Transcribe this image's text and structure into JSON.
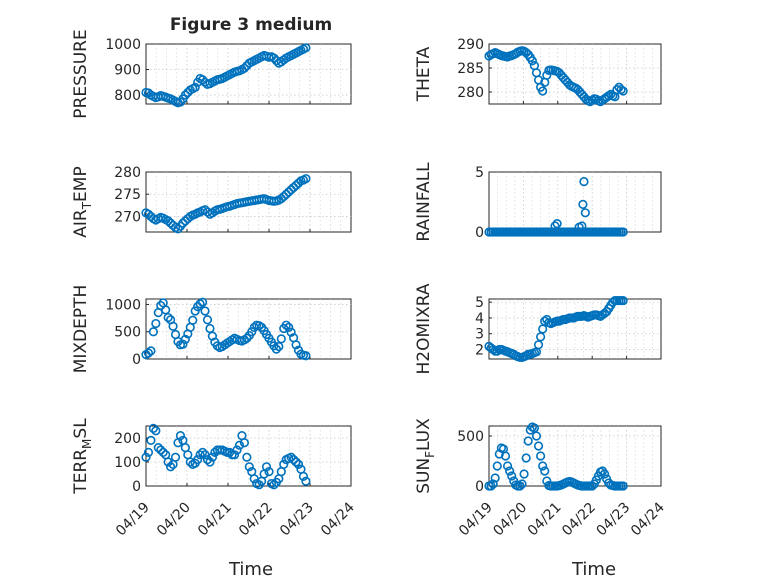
{
  "chart_data": {
    "type": "scatter",
    "title": "Figure 3 medium",
    "marker_color": "#0072BD",
    "grid": true,
    "x_ticks": [
      "04/19",
      "04/20",
      "04/21",
      "04/22",
      "04/23",
      "04/24"
    ],
    "x_range_days": [
      19,
      24
    ],
    "x_label": "Time",
    "subplots": [
      {
        "ylabel": "PRESSURE",
        "ylim": [
          765,
          1000
        ],
        "yticks": [
          800,
          900,
          1000
        ],
        "x": [
          19.0,
          19.06,
          19.12,
          19.18,
          19.24,
          19.3,
          19.36,
          19.42,
          19.48,
          19.54,
          19.6,
          19.66,
          19.72,
          19.78,
          19.84,
          19.9,
          19.96,
          20.02,
          20.08,
          20.14,
          20.2,
          20.26,
          20.32,
          20.38,
          20.44,
          20.5,
          20.56,
          20.62,
          20.68,
          20.74,
          20.8,
          20.86,
          20.92,
          20.98,
          21.04,
          21.1,
          21.16,
          21.22,
          21.28,
          21.34,
          21.4,
          21.46,
          21.52,
          21.58,
          21.64,
          21.7,
          21.76,
          21.82,
          21.88,
          21.94,
          22.0,
          22.06,
          22.12,
          22.18,
          22.24,
          22.3,
          22.36,
          22.42,
          22.48,
          22.54,
          22.6,
          22.66,
          22.72,
          22.78,
          22.84,
          22.9
        ],
        "y": [
          810,
          808,
          800,
          795,
          790,
          793,
          798,
          795,
          792,
          788,
          785,
          780,
          775,
          770,
          773,
          785,
          800,
          810,
          820,
          825,
          830,
          850,
          865,
          860,
          850,
          842,
          845,
          850,
          855,
          860,
          862,
          865,
          870,
          875,
          880,
          885,
          890,
          893,
          895,
          900,
          905,
          915,
          925,
          930,
          935,
          940,
          945,
          950,
          955,
          952,
          948,
          950,
          945,
          935,
          925,
          930,
          938,
          945,
          950,
          955,
          960,
          965,
          970,
          975,
          980,
          985
        ]
      },
      {
        "ylabel": "THETA",
        "ylim": [
          277.5,
          290
        ],
        "yticks": [
          280,
          285,
          290
        ],
        "x": [
          19.0,
          19.06,
          19.12,
          19.18,
          19.24,
          19.3,
          19.36,
          19.42,
          19.48,
          19.54,
          19.6,
          19.66,
          19.72,
          19.78,
          19.84,
          19.9,
          19.96,
          20.02,
          20.08,
          20.14,
          20.2,
          20.26,
          20.32,
          20.38,
          20.44,
          20.5,
          20.56,
          20.62,
          20.68,
          20.74,
          20.8,
          20.86,
          20.92,
          20.98,
          21.04,
          21.1,
          21.16,
          21.22,
          21.28,
          21.34,
          21.4,
          21.46,
          21.52,
          21.58,
          21.64,
          21.7,
          21.76,
          21.82,
          21.88,
          21.94,
          22.0,
          22.06,
          22.12,
          22.18,
          22.24,
          22.3,
          22.36,
          22.42,
          22.48,
          22.54,
          22.6,
          22.66,
          22.72,
          22.78,
          22.84,
          22.9
        ],
        "y": [
          287.5,
          287.8,
          288.0,
          288.2,
          288.0,
          287.8,
          287.6,
          287.5,
          287.4,
          287.3,
          287.5,
          287.6,
          287.8,
          288.0,
          288.3,
          288.5,
          288.6,
          288.5,
          288.2,
          287.8,
          287.2,
          286.5,
          285.5,
          284.0,
          282.5,
          281.0,
          280.2,
          282.0,
          283.5,
          284.5,
          284.6,
          284.5,
          284.4,
          284.3,
          284.0,
          283.5,
          283.0,
          282.5,
          282.0,
          281.5,
          281.2,
          281.0,
          280.8,
          280.5,
          280.0,
          279.5,
          279.0,
          278.5,
          278.2,
          278.0,
          278.3,
          278.6,
          278.5,
          278.2,
          278.0,
          278.3,
          278.6,
          278.9,
          279.2,
          279.5,
          279.2,
          279.0,
          280.5,
          281.0,
          280.5,
          280.2
        ]
      },
      {
        "ylabel": "AIR",
        "ylabel_sub": "T",
        "ylabel_tail": "EMP",
        "ylim": [
          266.5,
          280
        ],
        "yticks": [
          270,
          275,
          280
        ],
        "x": [
          19.0,
          19.06,
          19.12,
          19.18,
          19.24,
          19.3,
          19.36,
          19.42,
          19.48,
          19.54,
          19.6,
          19.66,
          19.72,
          19.78,
          19.84,
          19.9,
          19.96,
          20.02,
          20.08,
          20.14,
          20.2,
          20.26,
          20.32,
          20.38,
          20.44,
          20.5,
          20.56,
          20.62,
          20.68,
          20.74,
          20.8,
          20.86,
          20.92,
          20.98,
          21.04,
          21.1,
          21.16,
          21.22,
          21.28,
          21.34,
          21.4,
          21.46,
          21.52,
          21.58,
          21.64,
          21.7,
          21.76,
          21.82,
          21.88,
          21.94,
          22.0,
          22.06,
          22.12,
          22.18,
          22.24,
          22.3,
          22.36,
          22.42,
          22.48,
          22.54,
          22.6,
          22.66,
          22.72,
          22.78,
          22.84,
          22.9
        ],
        "y": [
          270.8,
          270.5,
          270.0,
          269.5,
          269.2,
          269.5,
          269.8,
          269.6,
          269.3,
          269.0,
          268.5,
          268.0,
          267.5,
          267.2,
          267.8,
          268.5,
          269.0,
          269.5,
          270.0,
          270.3,
          270.5,
          270.8,
          271.0,
          271.3,
          271.5,
          271.0,
          270.5,
          270.8,
          271.2,
          271.5,
          271.6,
          271.8,
          272.0,
          272.2,
          272.3,
          272.5,
          272.7,
          272.9,
          273.0,
          273.1,
          273.2,
          273.3,
          273.4,
          273.5,
          273.6,
          273.7,
          273.8,
          273.9,
          274.0,
          273.8,
          273.6,
          273.5,
          273.4,
          273.5,
          273.7,
          274.0,
          274.5,
          275.0,
          275.5,
          276.0,
          276.5,
          277.0,
          277.5,
          278.0,
          278.2,
          278.5
        ]
      },
      {
        "ylabel": "RAINFALL",
        "ylim": [
          0,
          5
        ],
        "yticks": [
          0,
          5
        ],
        "x": [
          19.0,
          19.06,
          19.12,
          19.18,
          19.24,
          19.3,
          19.36,
          19.42,
          19.48,
          19.54,
          19.6,
          19.66,
          19.72,
          19.78,
          19.84,
          19.9,
          19.96,
          20.02,
          20.08,
          20.14,
          20.2,
          20.26,
          20.32,
          20.38,
          20.44,
          20.5,
          20.56,
          20.62,
          20.68,
          20.74,
          20.8,
          20.86,
          20.92,
          20.98,
          21.04,
          21.1,
          21.16,
          21.22,
          21.28,
          21.34,
          21.4,
          21.46,
          21.52,
          21.58,
          21.64,
          21.7,
          21.76,
          21.82,
          21.88,
          21.94,
          22.0,
          22.06,
          22.12,
          22.18,
          22.24,
          22.3,
          22.36,
          22.42,
          22.48,
          22.54,
          22.6,
          22.66,
          22.72,
          22.78,
          22.84,
          22.9,
          20.92,
          20.98,
          21.62,
          21.7,
          21.73,
          21.76,
          21.8
        ],
        "y": [
          0,
          0,
          0,
          0,
          0,
          0,
          0,
          0,
          0,
          0,
          0,
          0,
          0,
          0,
          0,
          0,
          0,
          0,
          0,
          0,
          0,
          0,
          0,
          0,
          0,
          0,
          0,
          0,
          0,
          0,
          0,
          0,
          0,
          0,
          0,
          0,
          0,
          0,
          0,
          0,
          0,
          0,
          0,
          0,
          0,
          0,
          0,
          0,
          0,
          0,
          0,
          0,
          0,
          0,
          0,
          0,
          0,
          0,
          0,
          0,
          0,
          0,
          0,
          0,
          0,
          0,
          0.5,
          0.7,
          0.4,
          0.5,
          2.3,
          4.2,
          1.6
        ]
      },
      {
        "ylabel": "MIXDEPTH",
        "ylim": [
          0,
          1100
        ],
        "yticks": [
          0,
          500,
          1000
        ],
        "x": [
          19.0,
          19.06,
          19.12,
          19.18,
          19.24,
          19.3,
          19.36,
          19.42,
          19.48,
          19.54,
          19.6,
          19.66,
          19.72,
          19.78,
          19.84,
          19.9,
          19.96,
          20.02,
          20.08,
          20.14,
          20.2,
          20.26,
          20.32,
          20.38,
          20.44,
          20.5,
          20.56,
          20.62,
          20.68,
          20.74,
          20.8,
          20.86,
          20.92,
          20.98,
          21.04,
          21.1,
          21.16,
          21.22,
          21.28,
          21.34,
          21.4,
          21.46,
          21.52,
          21.58,
          21.64,
          21.7,
          21.76,
          21.82,
          21.88,
          21.94,
          22.0,
          22.06,
          22.12,
          22.18,
          22.24,
          22.3,
          22.36,
          22.42,
          22.48,
          22.54,
          22.6,
          22.66,
          22.72,
          22.78,
          22.84,
          22.9
        ],
        "y": [
          80,
          110,
          150,
          500,
          650,
          850,
          980,
          1030,
          900,
          760,
          720,
          600,
          450,
          320,
          260,
          270,
          360,
          460,
          580,
          710,
          880,
          960,
          1010,
          1040,
          880,
          720,
          560,
          420,
          310,
          240,
          210,
          230,
          260,
          290,
          320,
          350,
          380,
          360,
          340,
          330,
          350,
          380,
          430,
          500,
          580,
          620,
          610,
          580,
          520,
          450,
          380,
          310,
          240,
          180,
          230,
          370,
          560,
          620,
          580,
          490,
          390,
          260,
          160,
          90,
          70,
          60
        ]
      },
      {
        "ylabel": "H2OMIXRA",
        "ylim": [
          1.4,
          5.2
        ],
        "yticks": [
          2,
          3,
          4,
          5
        ],
        "x": [
          19.0,
          19.06,
          19.12,
          19.18,
          19.24,
          19.3,
          19.36,
          19.42,
          19.48,
          19.54,
          19.6,
          19.66,
          19.72,
          19.78,
          19.84,
          19.9,
          19.96,
          20.02,
          20.08,
          20.14,
          20.2,
          20.26,
          20.32,
          20.38,
          20.44,
          20.5,
          20.56,
          20.62,
          20.68,
          20.74,
          20.8,
          20.86,
          20.92,
          20.98,
          21.04,
          21.1,
          21.16,
          21.22,
          21.28,
          21.34,
          21.4,
          21.46,
          21.52,
          21.58,
          21.64,
          21.7,
          21.76,
          21.82,
          21.88,
          21.94,
          22.0,
          22.06,
          22.12,
          22.18,
          22.24,
          22.3,
          22.36,
          22.42,
          22.48,
          22.54,
          22.6,
          22.66,
          22.72,
          22.78,
          22.84,
          22.9
        ],
        "y": [
          2.2,
          2.1,
          2.0,
          1.9,
          1.9,
          2.0,
          2.0,
          1.95,
          1.9,
          1.85,
          1.8,
          1.75,
          1.7,
          1.6,
          1.55,
          1.5,
          1.5,
          1.55,
          1.6,
          1.7,
          1.7,
          1.75,
          1.8,
          1.85,
          2.3,
          2.8,
          3.3,
          3.8,
          3.9,
          3.7,
          3.65,
          3.7,
          3.75,
          3.8,
          3.8,
          3.85,
          3.9,
          3.9,
          3.95,
          4.0,
          4.0,
          4.0,
          4.05,
          4.1,
          4.1,
          4.1,
          4.15,
          4.1,
          4.05,
          4.1,
          4.15,
          4.2,
          4.2,
          4.15,
          4.1,
          4.2,
          4.3,
          4.4,
          4.6,
          4.8,
          5.0,
          5.1,
          5.1,
          5.1,
          5.1,
          5.1
        ]
      },
      {
        "ylabel": "TERR",
        "ylabel_sub": "M",
        "ylabel_tail": "SL",
        "ylim": [
          0,
          250
        ],
        "yticks": [
          0,
          100,
          200
        ],
        "x": [
          19.0,
          19.06,
          19.12,
          19.18,
          19.24,
          19.3,
          19.36,
          19.42,
          19.48,
          19.54,
          19.6,
          19.66,
          19.72,
          19.78,
          19.84,
          19.9,
          19.96,
          20.02,
          20.08,
          20.14,
          20.2,
          20.26,
          20.32,
          20.38,
          20.44,
          20.5,
          20.56,
          20.62,
          20.68,
          20.74,
          20.8,
          20.86,
          20.92,
          20.98,
          21.04,
          21.1,
          21.16,
          21.22,
          21.28,
          21.34,
          21.4,
          21.46,
          21.52,
          21.58,
          21.64,
          21.7,
          21.76,
          21.82,
          21.88,
          21.94,
          22.0,
          22.06,
          22.12,
          22.18,
          22.24,
          22.3,
          22.36,
          22.42,
          22.48,
          22.54,
          22.6,
          22.66,
          22.72,
          22.78,
          22.84,
          22.9
        ],
        "y": [
          120,
          140,
          190,
          240,
          230,
          160,
          150,
          140,
          130,
          100,
          80,
          90,
          120,
          180,
          210,
          190,
          160,
          130,
          100,
          90,
          95,
          110,
          130,
          140,
          130,
          110,
          100,
          120,
          140,
          150,
          150,
          150,
          145,
          140,
          140,
          130,
          130,
          150,
          170,
          210,
          180,
          120,
          80,
          60,
          30,
          10,
          5,
          20,
          50,
          80,
          60,
          10,
          5,
          15,
          30,
          60,
          90,
          110,
          115,
          120,
          110,
          100,
          90,
          70,
          40,
          20
        ]
      },
      {
        "ylabel": "SUN",
        "ylabel_sub": "F",
        "ylabel_tail": "LUX",
        "ylim": [
          0,
          600
        ],
        "yticks": [
          0,
          500
        ],
        "x": [
          19.0,
          19.06,
          19.12,
          19.18,
          19.24,
          19.3,
          19.36,
          19.42,
          19.48,
          19.54,
          19.6,
          19.66,
          19.72,
          19.78,
          19.84,
          19.9,
          19.96,
          20.02,
          20.08,
          20.14,
          20.2,
          20.26,
          20.32,
          20.38,
          20.44,
          20.5,
          20.56,
          20.62,
          20.68,
          20.74,
          20.8,
          20.86,
          20.92,
          20.98,
          21.04,
          21.1,
          21.16,
          21.22,
          21.28,
          21.34,
          21.4,
          21.46,
          21.52,
          21.58,
          21.64,
          21.7,
          21.76,
          21.82,
          21.88,
          21.94,
          22.0,
          22.06,
          22.12,
          22.18,
          22.24,
          22.3,
          22.36,
          22.42,
          22.48,
          22.54,
          22.6,
          22.66,
          22.72,
          22.78,
          22.84,
          22.9
        ],
        "y": [
          0,
          0,
          20,
          80,
          200,
          320,
          380,
          370,
          300,
          200,
          150,
          100,
          50,
          10,
          0,
          0,
          20,
          120,
          280,
          450,
          560,
          590,
          580,
          500,
          400,
          300,
          200,
          150,
          50,
          5,
          0,
          0,
          0,
          0,
          5,
          10,
          20,
          30,
          40,
          45,
          40,
          30,
          20,
          10,
          5,
          0,
          0,
          0,
          0,
          0,
          0,
          20,
          60,
          100,
          140,
          150,
          120,
          70,
          30,
          10,
          5,
          0,
          0,
          0,
          0,
          0
        ]
      }
    ]
  }
}
